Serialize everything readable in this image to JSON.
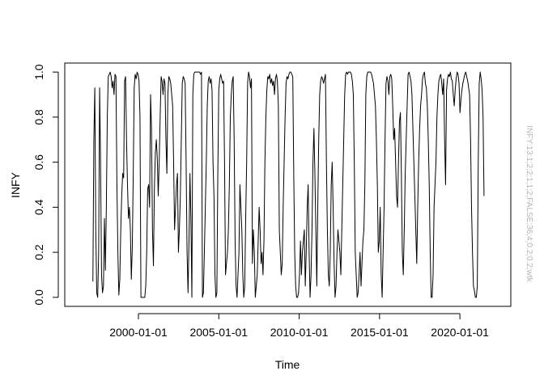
{
  "chart_data": {
    "type": "line",
    "title": "",
    "xlabel": "Time",
    "ylabel": "INFY",
    "side_note": "INFY:13:1;2;2;1;1;2;FALSE;36;4;0.2;0.2;wtk",
    "x_start": "1997-03-01",
    "x_end": "2021-07-01",
    "x_step": "1 month",
    "xlim": [
      "1995-06-01",
      "2023-03-01"
    ],
    "ylim": [
      -0.04,
      1.04
    ],
    "x_ticks": [
      "2000-01-01",
      "2005-01-01",
      "2010-01-01",
      "2015-01-01",
      "2020-01-01"
    ],
    "y_ticks": [
      "0.0",
      "0.2",
      "0.4",
      "0.6",
      "0.8",
      "1.0"
    ],
    "grid": false,
    "legend": "none",
    "series": [
      {
        "color": "#000000",
        "values": [
          0.07,
          0.7,
          0.93,
          0.3,
          0.02,
          0.0,
          0.2,
          0.93,
          0.6,
          0.1,
          0.02,
          0.05,
          0.35,
          0.12,
          0.4,
          0.8,
          0.98,
          0.99,
          1.0,
          0.98,
          0.93,
          0.96,
          0.9,
          0.99,
          0.98,
          0.5,
          0.2,
          0.01,
          0.08,
          0.3,
          0.45,
          0.55,
          0.53,
          0.96,
          0.98,
          0.7,
          0.5,
          0.35,
          0.4,
          0.3,
          0.08,
          0.22,
          0.55,
          0.93,
          0.99,
          0.97,
          1.0,
          0.99,
          0.96,
          0.8,
          0.0,
          0.0,
          0.0,
          0.0,
          0.0,
          0.05,
          0.2,
          0.48,
          0.5,
          0.4,
          0.9,
          0.75,
          0.3,
          0.14,
          0.48,
          0.64,
          0.7,
          0.62,
          0.45,
          0.6,
          0.8,
          0.98,
          0.96,
          0.9,
          0.97,
          0.95,
          0.7,
          0.55,
          0.9,
          0.98,
          0.97,
          0.95,
          0.9,
          0.85,
          0.6,
          0.3,
          0.4,
          0.5,
          0.55,
          0.2,
          0.3,
          0.45,
          0.7,
          0.95,
          0.98,
          0.97,
          0.95,
          0.6,
          0.2,
          0.02,
          0.25,
          0.55,
          0.35,
          0.0,
          0.9,
          0.99,
          1.0,
          1.0,
          1.0,
          1.0,
          1.0,
          1.0,
          0.99,
          1.0,
          0.0,
          0.02,
          0.2,
          0.4,
          0.6,
          0.85,
          0.96,
          0.98,
          0.95,
          0.97,
          0.92,
          0.6,
          0.45,
          0.1,
          0.0,
          0.02,
          0.55,
          0.92,
          0.97,
          0.99,
          0.97,
          0.95,
          0.96,
          0.6,
          0.1,
          0.15,
          0.2,
          0.3,
          0.5,
          0.8,
          0.9,
          0.96,
          0.98,
          0.7,
          0.25,
          0.05,
          0.0,
          0.1,
          0.2,
          0.5,
          0.4,
          0.3,
          0.1,
          0.0,
          0.05,
          0.35,
          0.6,
          0.95,
          1.0,
          0.98,
          0.93,
          0.97,
          0.15,
          0.3,
          0.2,
          0.0,
          0.05,
          0.1,
          0.25,
          0.4,
          0.3,
          0.15,
          0.2,
          0.1,
          0.25,
          0.6,
          0.8,
          0.92,
          0.98,
          0.97,
          0.99,
          0.95,
          0.97,
          0.94,
          0.96,
          0.9,
          0.97,
          0.99,
          0.96,
          0.85,
          0.3,
          0.2,
          0.1,
          0.15,
          0.4,
          0.6,
          0.8,
          0.95,
          0.98,
          0.97,
          0.99,
          1.0,
          1.0,
          0.99,
          0.98,
          0.55,
          0.2,
          0.05,
          0.0,
          0.0,
          0.02,
          0.1,
          0.25,
          0.1,
          0.2,
          0.25,
          0.3,
          0.05,
          0.2,
          0.4,
          0.5,
          0.2,
          0.0,
          0.1,
          0.3,
          0.6,
          0.75,
          0.55,
          0.3,
          0.05,
          0.4,
          0.7,
          0.9,
          0.96,
          0.98,
          0.97,
          0.95,
          0.97,
          0.99,
          0.6,
          0.3,
          0.1,
          0.05,
          0.2,
          0.5,
          0.6,
          0.4,
          0.15,
          0.0,
          0.05,
          0.2,
          0.3,
          0.25,
          0.2,
          0.1,
          0.3,
          0.5,
          0.7,
          0.9,
          0.99,
          1.0,
          0.99,
          1.0,
          1.0,
          1.0,
          0.99,
          0.96,
          0.9,
          0.6,
          0.2,
          0.1,
          0.0,
          0.02,
          0.1,
          0.2,
          0.05,
          0.15,
          0.25,
          0.3,
          0.5,
          0.9,
          0.98,
          1.0,
          1.0,
          1.0,
          1.0,
          0.99,
          0.97,
          0.95,
          0.9,
          0.85,
          0.7,
          0.5,
          0.2,
          0.25,
          0.4,
          0.1,
          0.0,
          0.2,
          0.4,
          0.7,
          0.95,
          0.98,
          0.96,
          0.9,
          0.98,
          0.99,
          0.97,
          0.85,
          0.7,
          0.75,
          0.6,
          0.45,
          0.4,
          0.6,
          0.78,
          0.82,
          0.55,
          0.2,
          0.1,
          0.3,
          0.55,
          0.7,
          0.85,
          0.99,
          1.0,
          0.98,
          0.96,
          0.9,
          0.75,
          0.6,
          0.45,
          0.3,
          0.15,
          0.4,
          0.6,
          0.75,
          0.85,
          0.9,
          0.97,
          0.99,
          1.0,
          0.95,
          0.93,
          0.85,
          0.7,
          0.5,
          0.2,
          0.0,
          0.0,
          0.1,
          0.4,
          0.5,
          0.6,
          0.8,
          0.9,
          0.96,
          0.98,
          0.99,
          0.95,
          0.9,
          0.97,
          0.7,
          0.5,
          0.92,
          0.97,
          0.99,
          0.98,
          1.0,
          0.97,
          0.96,
          0.9,
          0.85,
          0.92,
          0.97,
          1.0,
          0.99,
          0.95,
          0.82,
          0.88,
          0.92,
          0.95,
          0.97,
          0.99,
          1.0,
          0.98,
          0.96,
          0.93,
          0.9,
          0.7,
          0.4,
          0.2,
          0.05,
          0.03,
          0.0,
          0.0,
          0.05,
          0.6,
          0.95,
          1.0,
          0.97,
          0.92,
          0.8,
          0.45
        ]
      }
    ]
  }
}
